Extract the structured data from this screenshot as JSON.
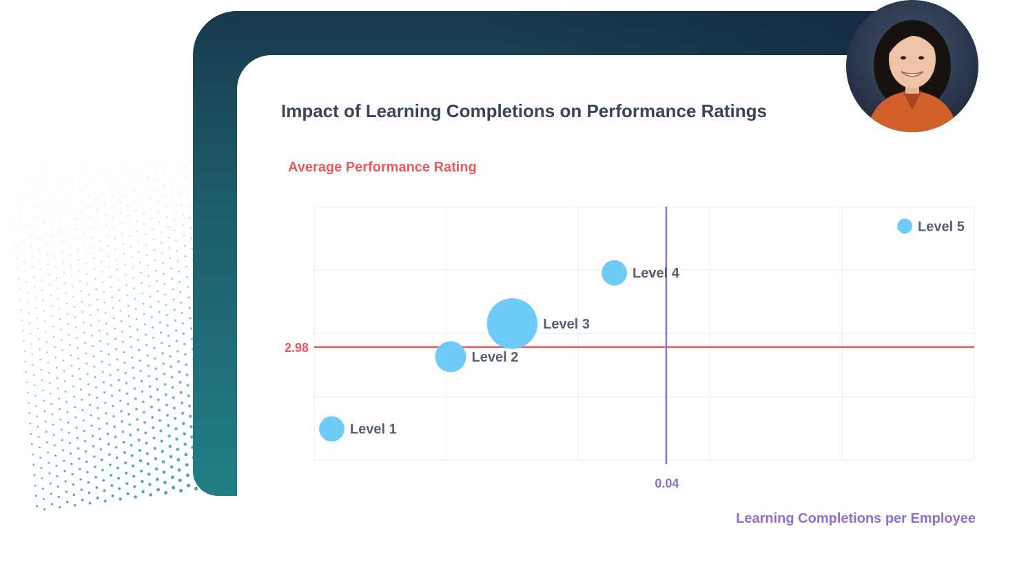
{
  "chart_data": {
    "type": "scatter",
    "title": "Impact of Learning Completions on Performance Ratings",
    "ylabel": "Average Performance Rating",
    "xlabel": "Learning Completions per Employee",
    "reference_lines": {
      "horizontal": {
        "value": 2.98,
        "label": "2.98",
        "color": "#ea5a5a"
      },
      "vertical": {
        "value": 0.04,
        "label": "0.04",
        "color": "#8b6fd3"
      }
    },
    "grid": true,
    "point_color": "#6ecbf7",
    "points": [
      {
        "label": "Level 1",
        "x": 0.002,
        "y": 2.56,
        "size": 2
      },
      {
        "label": "Level 2",
        "x": 0.0155,
        "y": 2.93,
        "size": 3
      },
      {
        "label": "Level 3",
        "x": 0.0225,
        "y": 3.1,
        "size": 8
      },
      {
        "label": "Level 4",
        "x": 0.0341,
        "y": 3.36,
        "size": 2
      },
      {
        "label": "Level 5",
        "x": 0.0671,
        "y": 3.6,
        "size": 0.7
      }
    ]
  },
  "avatar": {
    "icon": "person-photo-icon"
  }
}
